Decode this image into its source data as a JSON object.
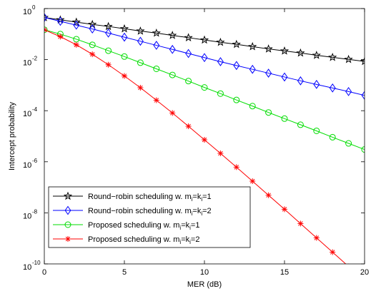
{
  "chart_data": {
    "type": "line",
    "title": "",
    "xlabel": "MER (dB)",
    "ylabel": "Intercept probability",
    "xlim": [
      0,
      20
    ],
    "ylim_log10": [
      -10,
      0
    ],
    "yscale": "log",
    "grid": false,
    "legend_position": "bottom-left",
    "x": [
      0,
      1,
      2,
      3,
      4,
      5,
      6,
      7,
      8,
      9,
      10,
      11,
      12,
      13,
      14,
      15,
      16,
      17,
      18,
      19,
      20
    ],
    "x_ticks": [
      "0",
      "5",
      "10",
      "15",
      "20"
    ],
    "y_tick_exponents": [
      "0",
      "-2",
      "-4",
      "-6",
      "-8",
      "-10"
    ],
    "y_tick_base": "10",
    "series": [
      {
        "name": "Round−robin scheduling w. m",
        "name_sub1": "i",
        "name_mid": "=k",
        "name_sub2": "i",
        "name_end": "=1",
        "color": "#000000",
        "marker": "star",
        "log10_values": [
          -0.35,
          -0.44,
          -0.53,
          -0.62,
          -0.7,
          -0.79,
          -0.88,
          -0.96,
          -1.05,
          -1.14,
          -1.23,
          -1.32,
          -1.4,
          -1.49,
          -1.58,
          -1.66,
          -1.74,
          -1.83,
          -1.91,
          -1.99,
          -2.07
        ]
      },
      {
        "name": "Round−robin scheduling w. m",
        "name_sub1": "i",
        "name_mid": "=k",
        "name_sub2": "i",
        "name_end": "=2",
        "color": "#0000ff",
        "marker": "diamond",
        "log10_values": [
          -0.35,
          -0.5,
          -0.65,
          -0.8,
          -0.96,
          -1.12,
          -1.28,
          -1.44,
          -1.6,
          -1.76,
          -1.92,
          -2.08,
          -2.23,
          -2.38,
          -2.53,
          -2.68,
          -2.83,
          -2.97,
          -3.11,
          -3.25,
          -3.4
        ]
      },
      {
        "name": "Proposed scheduling w. m",
        "name_sub1": "i",
        "name_mid": "=k",
        "name_sub2": "i",
        "name_end": "=1",
        "color": "#00dd00",
        "marker": "circle",
        "log10_values": [
          -0.83,
          -1.0,
          -1.2,
          -1.42,
          -1.65,
          -1.88,
          -2.12,
          -2.36,
          -2.6,
          -2.84,
          -3.09,
          -3.33,
          -3.58,
          -3.82,
          -4.07,
          -4.31,
          -4.55,
          -4.79,
          -5.04,
          -5.28,
          -5.52
        ]
      },
      {
        "name": "Proposed scheduling w. m",
        "name_sub1": "i",
        "name_mid": "=k",
        "name_sub2": "i",
        "name_end": "=2",
        "color": "#ff0000",
        "marker": "asterisk",
        "log10_values": [
          -0.83,
          -1.1,
          -1.42,
          -1.79,
          -2.2,
          -2.64,
          -3.1,
          -3.59,
          -4.09,
          -4.61,
          -5.14,
          -5.67,
          -6.21,
          -6.76,
          -7.31,
          -7.86,
          -8.42,
          -8.98,
          -9.54,
          -10.1,
          -10.66
        ]
      }
    ]
  }
}
